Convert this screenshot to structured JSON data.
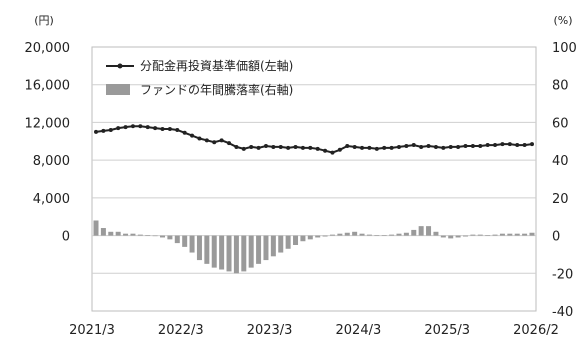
{
  "chart_data": {
    "type": "line+bar",
    "y_left": {
      "unit": "(円)",
      "ticks": [
        "20,000",
        "16,000",
        "12,000",
        "8,000",
        "4,000",
        "0"
      ],
      "range": [
        -8000,
        20000
      ]
    },
    "y_right": {
      "unit": "(%)",
      "ticks": [
        "100",
        "80",
        "60",
        "40",
        "20",
        "0",
        "-20",
        "-40"
      ],
      "range": [
        -40,
        100
      ]
    },
    "x_ticks": [
      "2021/3",
      "2022/3",
      "2023/3",
      "2024/3",
      "2025/3",
      "2026/2"
    ],
    "grid": true,
    "legend_position": "top-left",
    "series": [
      {
        "name": "分配金再投資基準価額(左軸)",
        "kind": "line",
        "axis": "left",
        "color": "#222222",
        "x": [
          "2021/3",
          "2021/4",
          "2021/5",
          "2021/6",
          "2021/7",
          "2021/8",
          "2021/9",
          "2021/10",
          "2021/11",
          "2021/12",
          "2022/1",
          "2022/2",
          "2022/3",
          "2022/4",
          "2022/5",
          "2022/6",
          "2022/7",
          "2022/8",
          "2022/9",
          "2022/10",
          "2022/11",
          "2022/12",
          "2023/1",
          "2023/2",
          "2023/3",
          "2023/4",
          "2023/5",
          "2023/6",
          "2023/7",
          "2023/8",
          "2023/9",
          "2023/10",
          "2023/11",
          "2023/12",
          "2024/1",
          "2024/2",
          "2024/3",
          "2024/4",
          "2024/5",
          "2024/6",
          "2024/7",
          "2024/8",
          "2024/9",
          "2024/10",
          "2024/11",
          "2024/12",
          "2025/1",
          "2025/2",
          "2025/3",
          "2025/4",
          "2025/5",
          "2025/6",
          "2025/7",
          "2025/8",
          "2025/9",
          "2025/10",
          "2025/11",
          "2025/12",
          "2026/1",
          "2026/2"
        ],
        "values": [
          11000,
          11100,
          11200,
          11400,
          11500,
          11600,
          11600,
          11500,
          11400,
          11300,
          11300,
          11200,
          10900,
          10600,
          10300,
          10100,
          9900,
          10100,
          9800,
          9400,
          9200,
          9400,
          9300,
          9500,
          9400,
          9400,
          9300,
          9400,
          9300,
          9300,
          9200,
          9000,
          8800,
          9100,
          9500,
          9400,
          9300,
          9300,
          9200,
          9300,
          9300,
          9400,
          9500,
          9600,
          9400,
          9500,
          9400,
          9300,
          9400,
          9400,
          9500,
          9500,
          9500,
          9600,
          9600,
          9700,
          9700,
          9600,
          9600,
          9700
        ]
      },
      {
        "name": "ファンドの年間騰落率(右軸)",
        "kind": "bar",
        "axis": "right",
        "color": "#9a9a9a",
        "values": [
          8,
          4,
          2,
          2,
          1,
          1,
          0.5,
          0.3,
          -0.3,
          -1,
          -2,
          -4,
          -6,
          -9,
          -13,
          -15,
          -17,
          -18,
          -19,
          -20,
          -19,
          -17,
          -15,
          -13,
          -11,
          -9,
          -7,
          -5,
          -3,
          -2,
          -1,
          -0.5,
          0.5,
          1,
          1.5,
          2,
          1,
          0.5,
          0.3,
          0.3,
          0.5,
          1,
          1.5,
          3,
          5,
          5,
          2,
          -1,
          -1.5,
          -1,
          -0.5,
          0.5,
          0.5,
          0.3,
          0.5,
          1,
          1,
          1,
          1,
          1.5
        ]
      }
    ]
  }
}
